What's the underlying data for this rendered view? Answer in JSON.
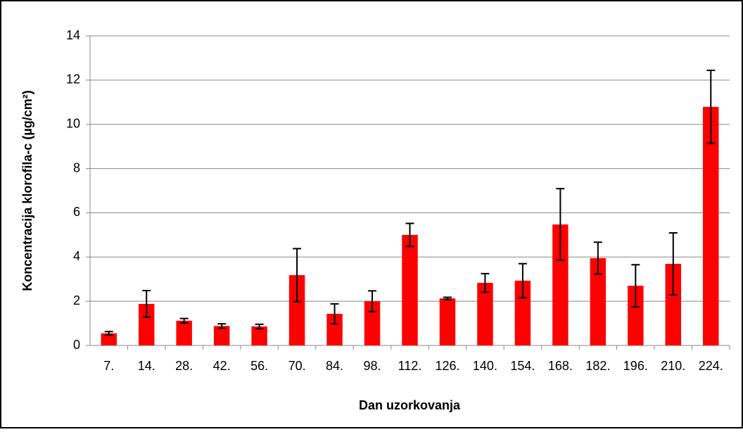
{
  "chart_data": {
    "type": "bar",
    "y_label": "Koncentracija klorofila-c (µg/cm²)",
    "x_label": "Dan uzorkovanja",
    "categories": [
      "7.",
      "14.",
      "28.",
      "42.",
      "56.",
      "70.",
      "84.",
      "98.",
      "112.",
      "126.",
      "140.",
      "154.",
      "168.",
      "182.",
      "196.",
      "210.",
      "224."
    ],
    "values": [
      0.55,
      1.88,
      1.12,
      0.88,
      0.86,
      3.18,
      1.43,
      2.0,
      5.0,
      2.13,
      2.83,
      2.93,
      5.47,
      3.95,
      2.7,
      3.69,
      10.79
    ],
    "errors": [
      0.08,
      0.6,
      0.1,
      0.1,
      0.1,
      1.2,
      0.45,
      0.47,
      0.52,
      0.05,
      0.42,
      0.77,
      1.62,
      0.72,
      0.95,
      1.4,
      1.65
    ],
    "color": "#ff0000",
    "ylim": [
      0,
      14
    ],
    "yticks": [
      0,
      2,
      4,
      6,
      8,
      10,
      12,
      14
    ],
    "grid": true
  }
}
